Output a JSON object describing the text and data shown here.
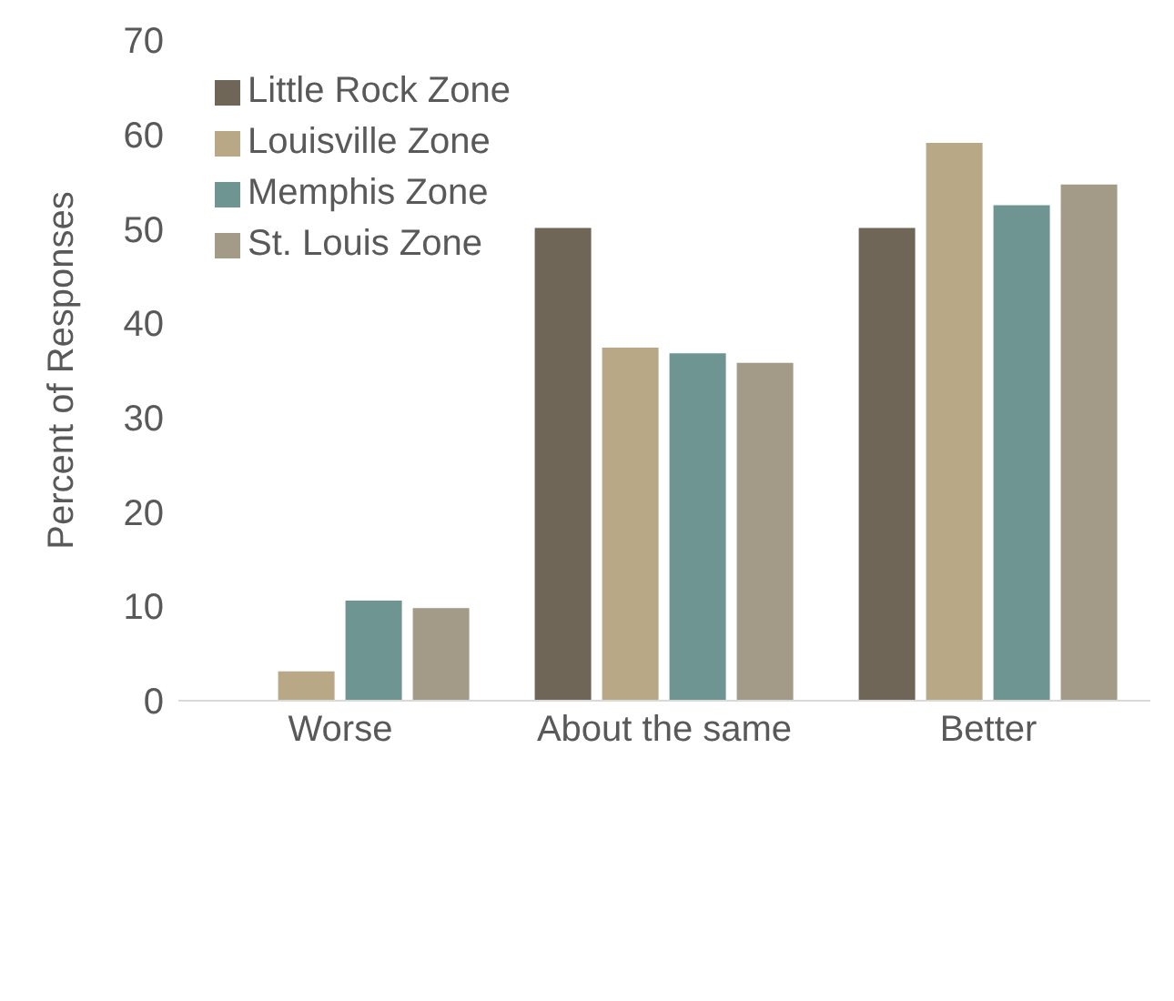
{
  "chart_data": {
    "type": "bar",
    "ylabel": "Percent of Responses",
    "categories": [
      "Worse",
      "About the same",
      "Better"
    ],
    "series": [
      {
        "name": "Little Rock Zone",
        "color": "#6f6657",
        "values": [
          0,
          50.1,
          50.1
        ]
      },
      {
        "name": "Louisville Zone",
        "color": "#b8a886",
        "values": [
          3.1,
          37.4,
          59.1
        ]
      },
      {
        "name": "Memphis Zone",
        "color": "#6f9593",
        "values": [
          10.6,
          36.8,
          52.5
        ]
      },
      {
        "name": "St. Louis Zone",
        "color": "#a39a87",
        "values": [
          9.8,
          35.8,
          54.7
        ]
      }
    ],
    "ylim": [
      0,
      70
    ],
    "yticks": [
      0,
      10,
      20,
      30,
      40,
      50,
      60,
      70
    ],
    "grid": false,
    "legend": "top left"
  }
}
